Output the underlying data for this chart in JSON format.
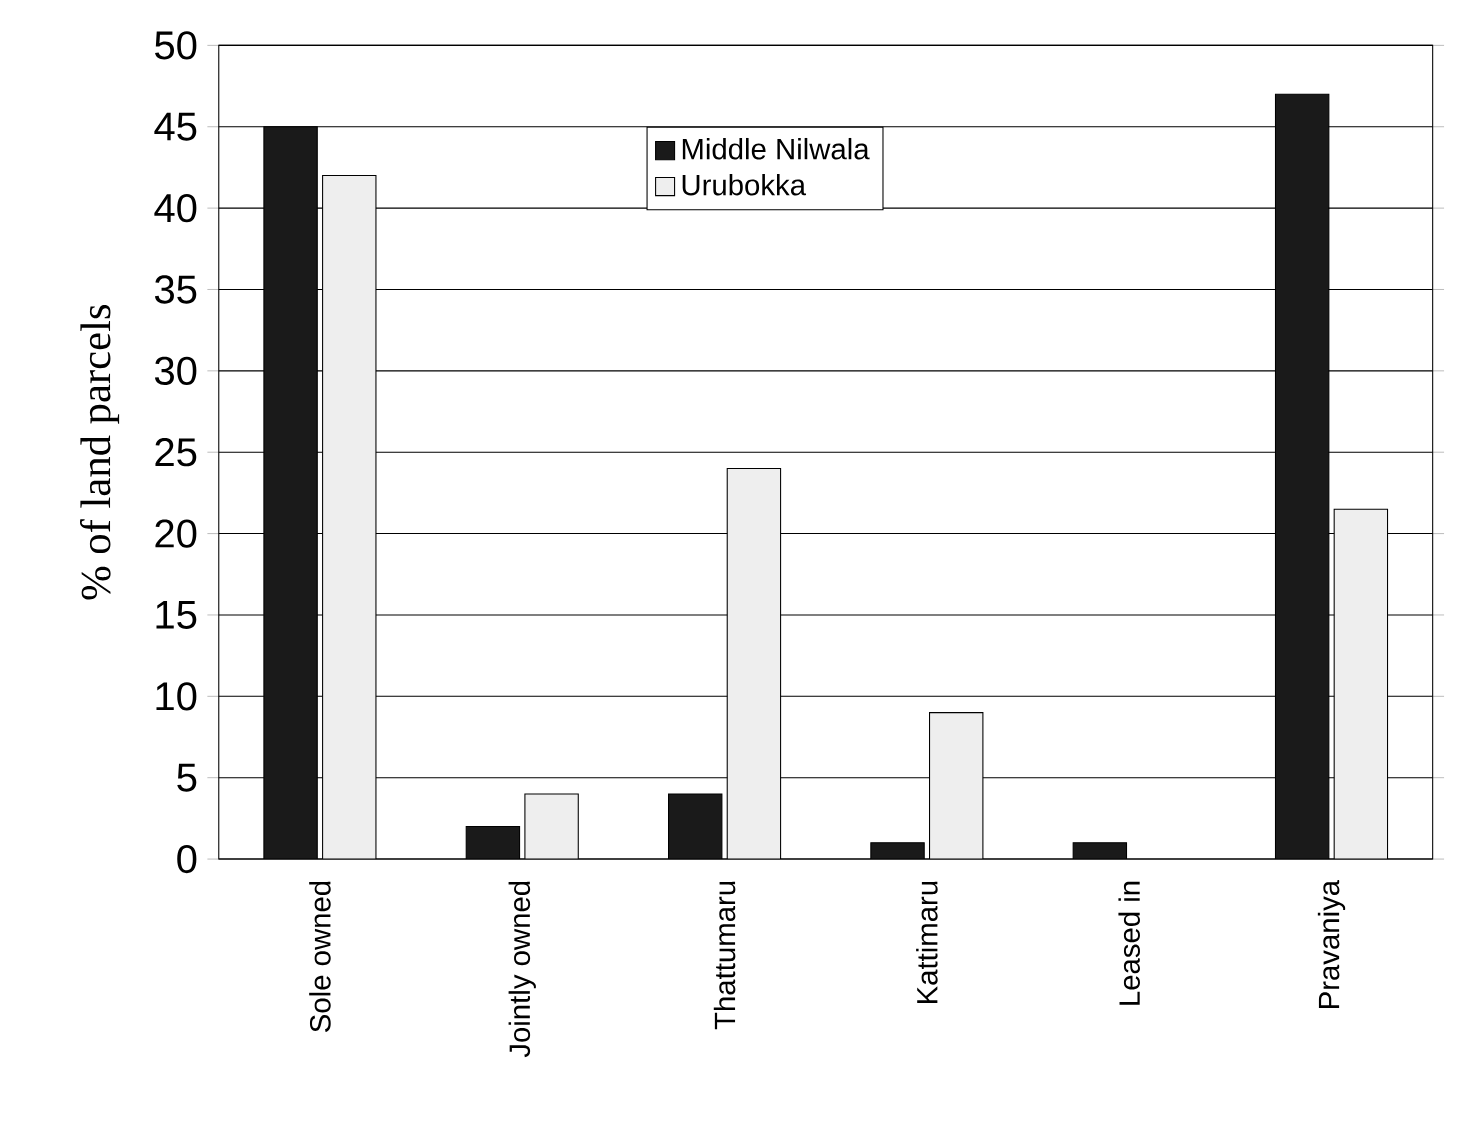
{
  "chart_data": {
    "type": "bar",
    "ylabel": "% of land parcels",
    "categories": [
      "Sole owned",
      "Jointly owned",
      "Thattumaru",
      "Kattimaru",
      "Leased in",
      "Pravaniya"
    ],
    "series": [
      {
        "name": "Middle Nilwala",
        "color": "#1a1a1a",
        "values": [
          45,
          2,
          4,
          1,
          1,
          47
        ]
      },
      {
        "name": "Urubokka",
        "color": "#eeeeee",
        "values": [
          42,
          4,
          24,
          9,
          0,
          21.5
        ]
      }
    ],
    "ylim": [
      0,
      50
    ],
    "yticks": [
      0,
      5,
      10,
      15,
      20,
      25,
      30,
      35,
      40,
      45,
      50
    ],
    "grid": "y",
    "legend": "top"
  }
}
